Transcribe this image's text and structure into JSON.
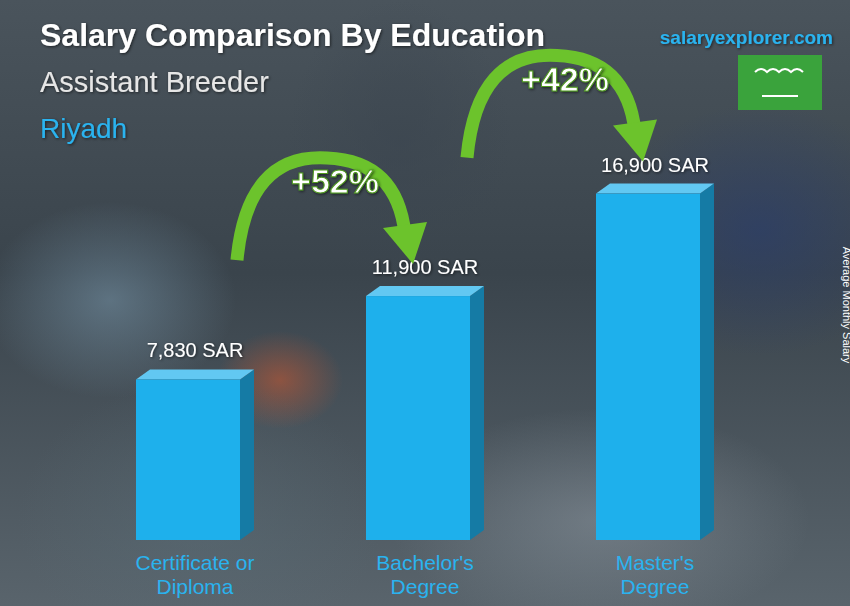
{
  "chart_data": {
    "type": "bar",
    "title": "Salary Comparison By Education",
    "subtitle": "Assistant Breeder",
    "location": "Riyadh",
    "source": "salaryexplorer.com",
    "y_label": "Average Monthly Salary",
    "categories": [
      "Certificate or Diploma",
      "Bachelor's Degree",
      "Master's Degree"
    ],
    "values": [
      7830,
      11900,
      16900
    ],
    "value_labels": [
      "7,830 SAR",
      "11,900 SAR",
      "16,900 SAR"
    ],
    "annotations": [
      "+52%",
      "+42%"
    ],
    "color": "#1eb0ec",
    "ylim": [
      0,
      20000
    ],
    "data_labels": true,
    "tick_labels": "x",
    "grid": false
  }
}
